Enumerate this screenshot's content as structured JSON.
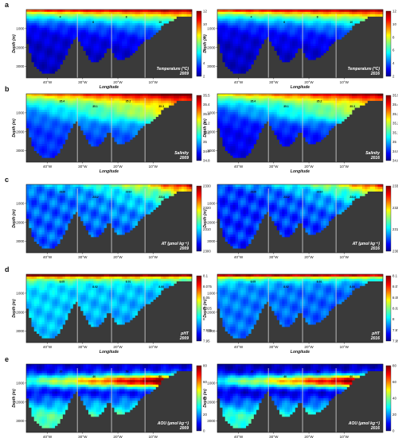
{
  "chart_data": {
    "type": "heatmap",
    "x_axis": {
      "label": "Longitude",
      "ticks": [
        "40°W",
        "30°W",
        "20°W",
        "10°W"
      ],
      "range_lon": [
        -46,
        1
      ],
      "tick_lon": [
        -40,
        -30,
        -20,
        -10
      ]
    },
    "y_axis": {
      "label": "Depth (m)",
      "ticks": [
        "1000",
        "2000",
        "3000"
      ],
      "range": [
        0,
        3600
      ],
      "tick_values": [
        1000,
        2000,
        3000
      ]
    },
    "years": [
      "2009",
      "2016"
    ],
    "panels": [
      {
        "letter": "a",
        "variable": "Temperature (°C)",
        "colorbar_ticks": [
          "12",
          "10",
          "8",
          "6",
          "4",
          "2"
        ],
        "colorbar_range": [
          2,
          13
        ],
        "colormap": "jet",
        "contour_labels": [
          "4",
          "6",
          "8",
          "10"
        ],
        "show_x_label": true,
        "bottom_tick_labels": true
      },
      {
        "letter": "b",
        "variable": "Salinity",
        "colorbar_ticks": [
          "35.5",
          "35.4",
          "35.3",
          "35.2",
          "35.1",
          "35",
          "34.9",
          "34.8"
        ],
        "colorbar_range": [
          34.8,
          35.5
        ],
        "colormap": "jet",
        "contour_labels": [
          "35.4",
          "35.1",
          "35.2",
          "35.3",
          "34.95"
        ],
        "show_x_label": true,
        "bottom_tick_labels": true
      },
      {
        "letter": "c",
        "variable": "A<sub>T</sub> (µmol kg⁻¹)",
        "variable_text": "AT (µmol kg⁻¹)",
        "colorbar_ticks": [
          "2330",
          "2320",
          "2310",
          "2300"
        ],
        "colorbar_range": [
          2300,
          2335
        ],
        "colormap": "jet",
        "contour_labels": [
          "2320",
          "2312",
          "2310",
          "2314",
          "2316"
        ],
        "show_x_label": false,
        "bottom_tick_labels": true
      },
      {
        "letter": "d",
        "variable": "pHT",
        "colorbar_ticks": [
          "8.1",
          "8.075",
          "8.05",
          "8.025",
          "8",
          "7.975",
          "7.95"
        ],
        "colorbar_range": [
          7.95,
          8.1
        ],
        "colormap": "jet",
        "contour_labels": [
          "8.05",
          "8.02",
          "8.01",
          "8.00"
        ],
        "show_x_label": true,
        "bottom_tick_labels": true
      },
      {
        "letter": "e",
        "variable": "AOU (µmol kg⁻¹)",
        "colorbar_ticks": [
          "80",
          "60",
          "40",
          "20",
          "0"
        ],
        "colorbar_range": [
          0,
          80
        ],
        "colormap": "jet",
        "contour_labels": [
          "20",
          "40",
          "50",
          "60",
          "45"
        ],
        "show_x_label": true,
        "bottom_tick_labels": true
      }
    ],
    "section_dividers_lon": [
      -31.5,
      -21.8,
      -12.3
    ]
  }
}
